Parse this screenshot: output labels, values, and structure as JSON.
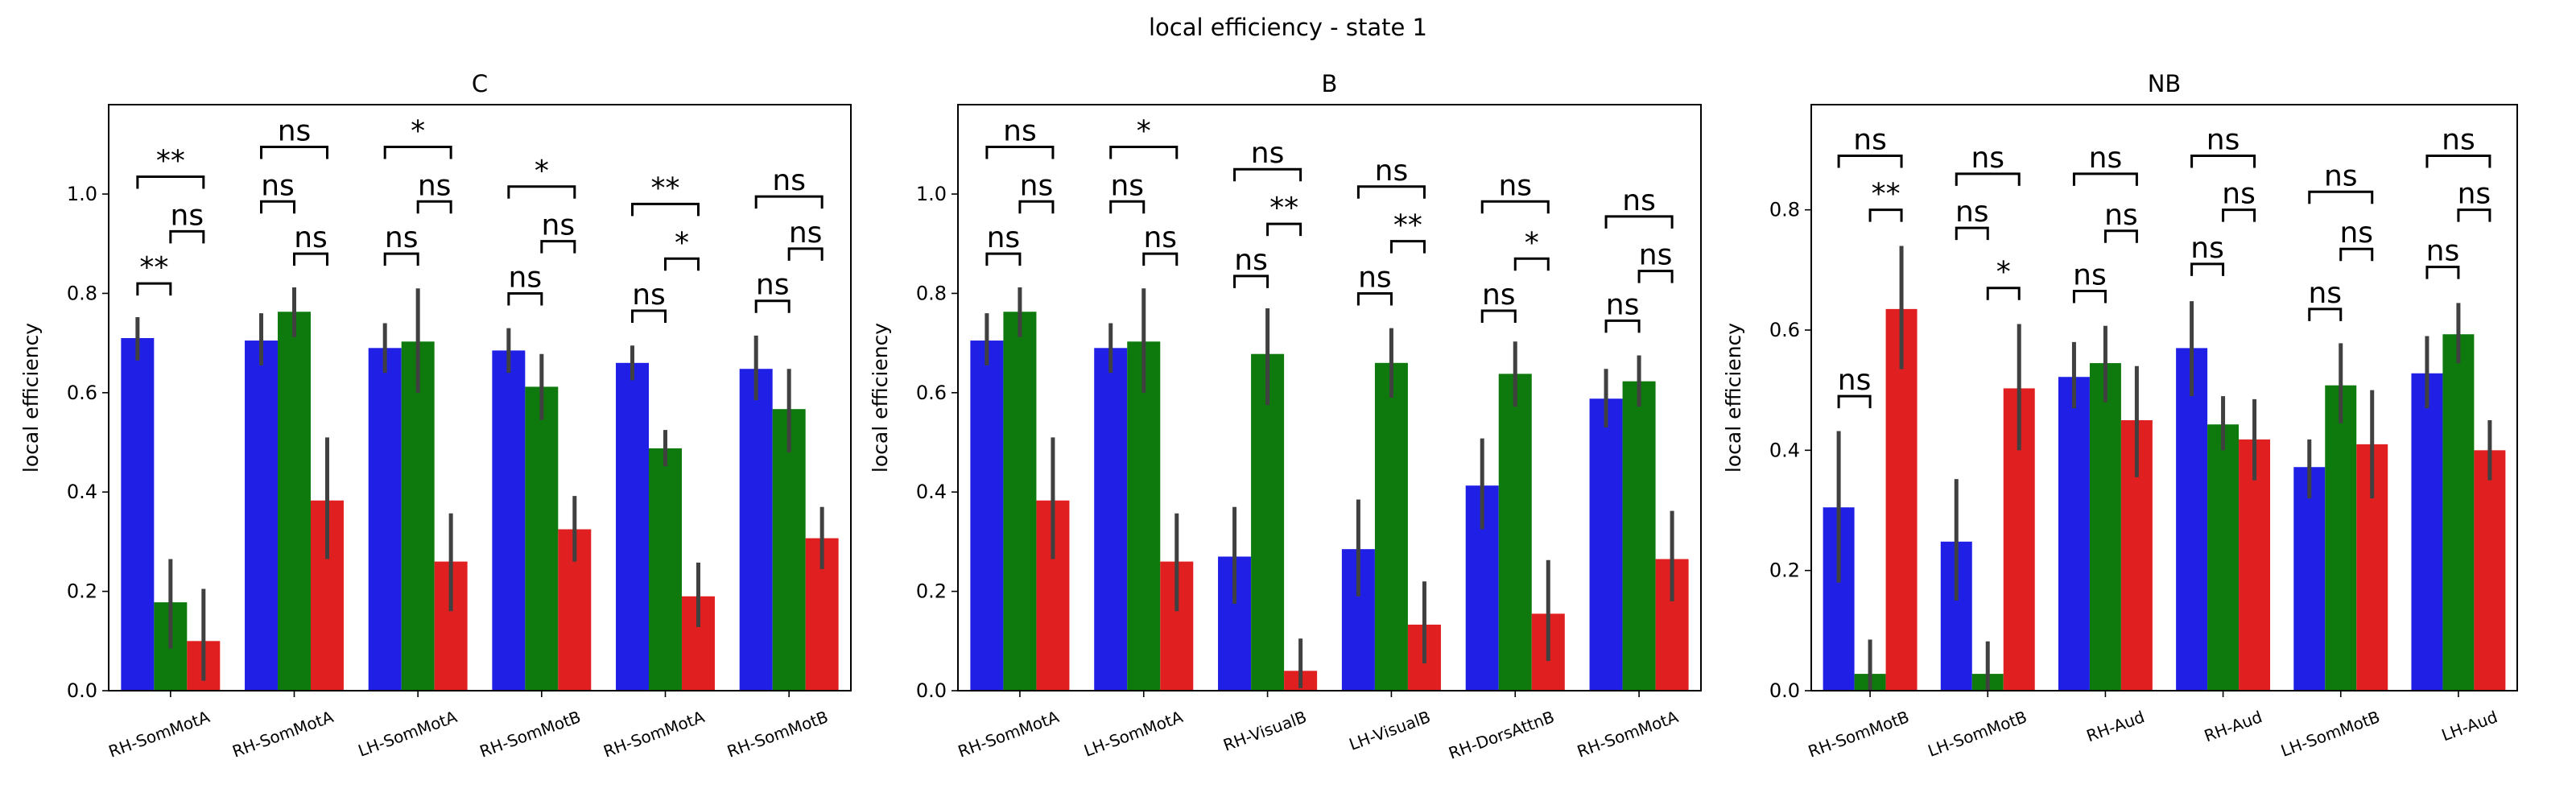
{
  "figure": {
    "suptitle": "local efficiency - state 1"
  },
  "colors": {
    "series": [
      "#1f1fe6",
      "#0e7a0e",
      "#e02020"
    ],
    "errorbar": "#404040",
    "axis": "#000000"
  },
  "chart_data": [
    {
      "type": "bar",
      "title": "C",
      "xlabel": "",
      "ylabel": "local efficiency",
      "ylim": [
        0,
        1.18
      ],
      "yticks": [
        "0.0",
        "0.2",
        "0.4",
        "0.6",
        "0.8",
        "1.0"
      ],
      "grid": false,
      "categories": [
        "RH-SomMotA",
        "RH-SomMotA",
        "LH-SomMotA",
        "RH-SomMotB",
        "RH-SomMotA",
        "RH-SomMotB"
      ],
      "series": [
        {
          "values": [
            0.71,
            0.705,
            0.69,
            0.685,
            0.66,
            0.648
          ],
          "err_low": [
            0.665,
            0.655,
            0.64,
            0.64,
            0.625,
            0.585
          ],
          "err_high": [
            0.752,
            0.76,
            0.74,
            0.73,
            0.695,
            0.715
          ]
        },
        {
          "values": [
            0.178,
            0.763,
            0.703,
            0.612,
            0.488,
            0.567
          ],
          "err_low": [
            0.085,
            0.712,
            0.6,
            0.545,
            0.452,
            0.48
          ],
          "err_high": [
            0.265,
            0.812,
            0.81,
            0.678,
            0.525,
            0.648
          ]
        },
        {
          "values": [
            0.1,
            0.383,
            0.26,
            0.325,
            0.19,
            0.307
          ],
          "err_low": [
            0.02,
            0.265,
            0.16,
            0.26,
            0.128,
            0.245
          ],
          "err_high": [
            0.205,
            0.51,
            0.357,
            0.392,
            0.258,
            0.37
          ]
        }
      ],
      "annotations": [
        {
          "category": 0,
          "from": 0,
          "to": 1,
          "label": "**",
          "level": 0.82
        },
        {
          "category": 0,
          "from": 1,
          "to": 2,
          "label": "ns",
          "level": 0.925
        },
        {
          "category": 0,
          "from": 0,
          "to": 2,
          "label": "**",
          "level": 1.035
        },
        {
          "category": 1,
          "from": 0,
          "to": 1,
          "label": "ns",
          "level": 0.985
        },
        {
          "category": 1,
          "from": 1,
          "to": 2,
          "label": "ns",
          "level": 0.88
        },
        {
          "category": 1,
          "from": 0,
          "to": 2,
          "label": "ns",
          "level": 1.095
        },
        {
          "category": 2,
          "from": 0,
          "to": 1,
          "label": "ns",
          "level": 0.88
        },
        {
          "category": 2,
          "from": 1,
          "to": 2,
          "label": "ns",
          "level": 0.985
        },
        {
          "category": 2,
          "from": 0,
          "to": 2,
          "label": "*",
          "level": 1.095
        },
        {
          "category": 3,
          "from": 0,
          "to": 1,
          "label": "ns",
          "level": 0.8
        },
        {
          "category": 3,
          "from": 1,
          "to": 2,
          "label": "ns",
          "level": 0.905
        },
        {
          "category": 3,
          "from": 0,
          "to": 2,
          "label": "*",
          "level": 1.015
        },
        {
          "category": 4,
          "from": 0,
          "to": 1,
          "label": "ns",
          "level": 0.765
        },
        {
          "category": 4,
          "from": 1,
          "to": 2,
          "label": "*",
          "level": 0.87
        },
        {
          "category": 4,
          "from": 0,
          "to": 2,
          "label": "**",
          "level": 0.98
        },
        {
          "category": 5,
          "from": 0,
          "to": 1,
          "label": "ns",
          "level": 0.785
        },
        {
          "category": 5,
          "from": 1,
          "to": 2,
          "label": "ns",
          "level": 0.89
        },
        {
          "category": 5,
          "from": 0,
          "to": 2,
          "label": "ns",
          "level": 0.995
        }
      ]
    },
    {
      "type": "bar",
      "title": "B",
      "xlabel": "",
      "ylabel": "local efficiency",
      "ylim": [
        0,
        1.18
      ],
      "yticks": [
        "0.0",
        "0.2",
        "0.4",
        "0.6",
        "0.8",
        "1.0"
      ],
      "grid": false,
      "categories": [
        "RH-SomMotA",
        "LH-SomMotA",
        "RH-VisualB",
        "LH-VisualB",
        "RH-DorsAttnB",
        "RH-SomMotA"
      ],
      "series": [
        {
          "values": [
            0.705,
            0.69,
            0.27,
            0.285,
            0.413,
            0.588
          ],
          "err_low": [
            0.655,
            0.64,
            0.175,
            0.19,
            0.325,
            0.53
          ],
          "err_high": [
            0.76,
            0.74,
            0.37,
            0.385,
            0.508,
            0.648
          ]
        },
        {
          "values": [
            0.763,
            0.703,
            0.678,
            0.66,
            0.638,
            0.623
          ],
          "err_low": [
            0.712,
            0.6,
            0.575,
            0.59,
            0.572,
            0.572
          ],
          "err_high": [
            0.812,
            0.81,
            0.77,
            0.73,
            0.703,
            0.675
          ]
        },
        {
          "values": [
            0.383,
            0.26,
            0.04,
            0.133,
            0.155,
            0.265
          ],
          "err_low": [
            0.265,
            0.16,
            0.005,
            0.055,
            0.06,
            0.18
          ],
          "err_high": [
            0.51,
            0.357,
            0.105,
            0.22,
            0.263,
            0.362
          ]
        }
      ],
      "annotations": [
        {
          "category": 0,
          "from": 0,
          "to": 1,
          "label": "ns",
          "level": 0.88
        },
        {
          "category": 0,
          "from": 1,
          "to": 2,
          "label": "ns",
          "level": 0.985
        },
        {
          "category": 0,
          "from": 0,
          "to": 2,
          "label": "ns",
          "level": 1.095
        },
        {
          "category": 1,
          "from": 0,
          "to": 1,
          "label": "ns",
          "level": 0.985
        },
        {
          "category": 1,
          "from": 1,
          "to": 2,
          "label": "ns",
          "level": 0.88
        },
        {
          "category": 1,
          "from": 0,
          "to": 2,
          "label": "*",
          "level": 1.095
        },
        {
          "category": 2,
          "from": 0,
          "to": 1,
          "label": "ns",
          "level": 0.835
        },
        {
          "category": 2,
          "from": 1,
          "to": 2,
          "label": "**",
          "level": 0.94
        },
        {
          "category": 2,
          "from": 0,
          "to": 2,
          "label": "ns",
          "level": 1.05
        },
        {
          "category": 3,
          "from": 0,
          "to": 1,
          "label": "ns",
          "level": 0.8
        },
        {
          "category": 3,
          "from": 1,
          "to": 2,
          "label": "**",
          "level": 0.905
        },
        {
          "category": 3,
          "from": 0,
          "to": 2,
          "label": "ns",
          "level": 1.015
        },
        {
          "category": 4,
          "from": 0,
          "to": 1,
          "label": "ns",
          "level": 0.765
        },
        {
          "category": 4,
          "from": 1,
          "to": 2,
          "label": "*",
          "level": 0.87
        },
        {
          "category": 4,
          "from": 0,
          "to": 2,
          "label": "ns",
          "level": 0.985
        },
        {
          "category": 5,
          "from": 0,
          "to": 1,
          "label": "ns",
          "level": 0.745
        },
        {
          "category": 5,
          "from": 1,
          "to": 2,
          "label": "ns",
          "level": 0.845
        },
        {
          "category": 5,
          "from": 0,
          "to": 2,
          "label": "ns",
          "level": 0.955
        }
      ]
    },
    {
      "type": "bar",
      "title": "NB",
      "xlabel": "",
      "ylabel": "local efficiency",
      "ylim": [
        0,
        0.975
      ],
      "yticks": [
        "0.0",
        "0.2",
        "0.4",
        "0.6",
        "0.8"
      ],
      "grid": false,
      "categories": [
        "RH-SomMotB",
        "LH-SomMotB",
        "RH-Aud",
        "RH-Aud",
        "LH-SomMotB",
        "LH-Aud"
      ],
      "series": [
        {
          "values": [
            0.305,
            0.248,
            0.522,
            0.57,
            0.372,
            0.528
          ],
          "err_low": [
            0.18,
            0.15,
            0.47,
            0.49,
            0.32,
            0.47
          ],
          "err_high": [
            0.432,
            0.352,
            0.58,
            0.648,
            0.418,
            0.59
          ]
        },
        {
          "values": [
            0.028,
            0.028,
            0.545,
            0.443,
            0.508,
            0.593
          ],
          "err_low": [
            0.0,
            0.0,
            0.48,
            0.4,
            0.445,
            0.545
          ],
          "err_high": [
            0.085,
            0.082,
            0.607,
            0.49,
            0.578,
            0.645
          ]
        },
        {
          "values": [
            0.635,
            0.503,
            0.45,
            0.418,
            0.41,
            0.4
          ],
          "err_low": [
            0.535,
            0.4,
            0.355,
            0.35,
            0.32,
            0.35
          ],
          "err_high": [
            0.74,
            0.61,
            0.54,
            0.485,
            0.5,
            0.45
          ]
        }
      ],
      "annotations": [
        {
          "category": 0,
          "from": 0,
          "to": 1,
          "label": "ns",
          "level": 0.49
        },
        {
          "category": 0,
          "from": 1,
          "to": 2,
          "label": "**",
          "level": 0.8
        },
        {
          "category": 0,
          "from": 0,
          "to": 2,
          "label": "ns",
          "level": 0.89
        },
        {
          "category": 1,
          "from": 0,
          "to": 1,
          "label": "ns",
          "level": 0.77
        },
        {
          "category": 1,
          "from": 1,
          "to": 2,
          "label": "*",
          "level": 0.67
        },
        {
          "category": 1,
          "from": 0,
          "to": 2,
          "label": "ns",
          "level": 0.86
        },
        {
          "category": 2,
          "from": 0,
          "to": 1,
          "label": "ns",
          "level": 0.665
        },
        {
          "category": 2,
          "from": 1,
          "to": 2,
          "label": "ns",
          "level": 0.765
        },
        {
          "category": 2,
          "from": 0,
          "to": 2,
          "label": "ns",
          "level": 0.86
        },
        {
          "category": 3,
          "from": 0,
          "to": 1,
          "label": "ns",
          "level": 0.71
        },
        {
          "category": 3,
          "from": 1,
          "to": 2,
          "label": "ns",
          "level": 0.8
        },
        {
          "category": 3,
          "from": 0,
          "to": 2,
          "label": "ns",
          "level": 0.89
        },
        {
          "category": 4,
          "from": 0,
          "to": 1,
          "label": "ns",
          "level": 0.635
        },
        {
          "category": 4,
          "from": 1,
          "to": 2,
          "label": "ns",
          "level": 0.735
        },
        {
          "category": 4,
          "from": 0,
          "to": 2,
          "label": "ns",
          "level": 0.83
        },
        {
          "category": 5,
          "from": 0,
          "to": 1,
          "label": "ns",
          "level": 0.705
        },
        {
          "category": 5,
          "from": 1,
          "to": 2,
          "label": "ns",
          "level": 0.8
        },
        {
          "category": 5,
          "from": 0,
          "to": 2,
          "label": "ns",
          "level": 0.89
        }
      ]
    }
  ]
}
